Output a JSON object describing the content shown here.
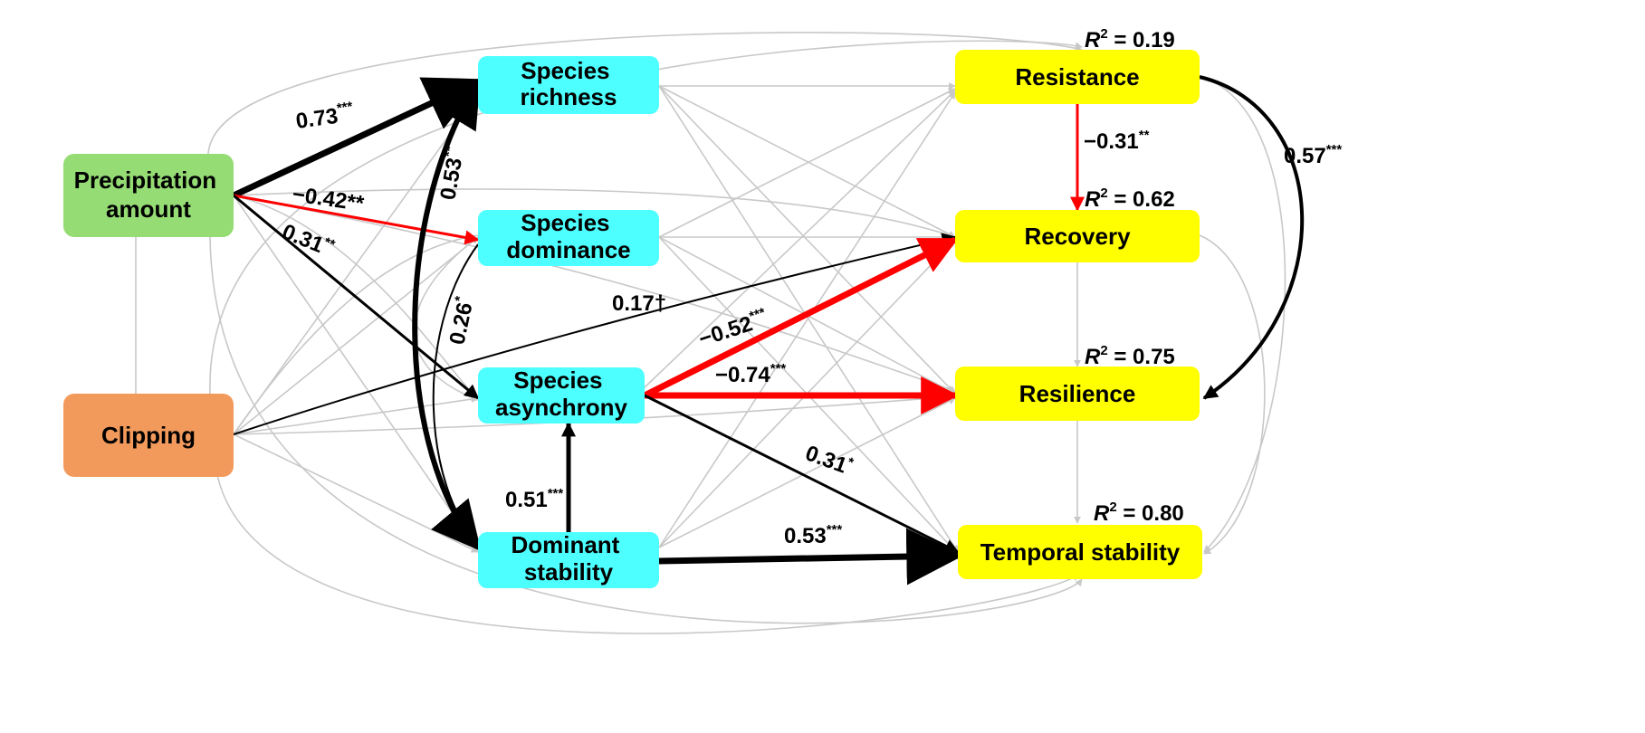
{
  "colors": {
    "driver_precip": "#95dc74",
    "driver_clipping": "#f29a5c",
    "mediator": "#4dffff",
    "response": "#ffff00",
    "positive_path": "#000000",
    "negative_path": "#ff0000",
    "nonsignificant_path": "#c8c8c8"
  },
  "nodes": {
    "precip": [
      "Precipitation",
      "amount"
    ],
    "clipping": [
      "Clipping"
    ],
    "richness": [
      "Species",
      "richness"
    ],
    "dominance": [
      "Species",
      "dominance"
    ],
    "asynchrony": [
      "Species",
      "asynchrony"
    ],
    "domstab": [
      "Dominant",
      "stability"
    ],
    "resistance": [
      "Resistance"
    ],
    "recovery": [
      "Recovery"
    ],
    "resilience": [
      "Resilience"
    ],
    "temporal": [
      "Temporal stability"
    ]
  },
  "r2": {
    "resistance": "0.19",
    "recovery": "0.62",
    "resilience": "0.75",
    "temporal": "0.80"
  },
  "paths": {
    "precip_richness": {
      "coef": "0.73",
      "sig": "***"
    },
    "precip_dominance": {
      "coef": "−0.42",
      "sig": "**"
    },
    "precip_asynchrony": {
      "coef": "0.31",
      "sig": "**"
    },
    "richness_domstab": {
      "coef": "0.53",
      "sig": "**"
    },
    "dominance_domstab": {
      "coef": "0.26",
      "sig": "*"
    },
    "clipping_recovery": {
      "coef": "0.17†",
      "sig": ""
    },
    "asynchrony_recovery": {
      "coef": "−0.52",
      "sig": "***"
    },
    "asynchrony_resilience": {
      "coef": "−0.74",
      "sig": "***"
    },
    "asynchrony_temporal": {
      "coef": "0.31",
      "sig": "*"
    },
    "domstab_asynchrony": {
      "coef": "0.51",
      "sig": "***"
    },
    "domstab_temporal": {
      "coef": "0.53",
      "sig": "***"
    },
    "resistance_recovery": {
      "coef": "−0.31",
      "sig": "**"
    },
    "resistance_resilience": {
      "coef": "0.57",
      "sig": "***"
    }
  }
}
